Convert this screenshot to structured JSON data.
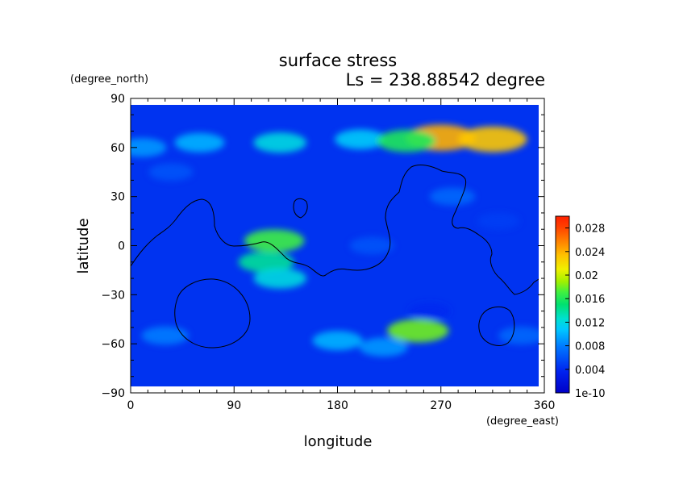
{
  "chart_data": {
    "type": "heatmap",
    "title": "surface stress",
    "subtitle": "Ls = 238.88542 degree",
    "xlabel": "longitude",
    "ylabel": "latitude",
    "x_unit": "(degree_east)",
    "y_unit": "(degree_north)",
    "xlim": [
      0,
      360
    ],
    "ylim": [
      -90,
      90
    ],
    "x_ticks": [
      0,
      90,
      180,
      270,
      360
    ],
    "y_ticks": [
      90,
      60,
      30,
      0,
      -30,
      -60,
      -90
    ],
    "x_tick_labels": [
      "0",
      "90",
      "180",
      "270",
      "360"
    ],
    "y_tick_labels": [
      "90",
      "60",
      "30",
      "0",
      "−30",
      "−60",
      "−90"
    ],
    "colorbar": {
      "min": 0,
      "max": 0.03,
      "tick_values": [
        0,
        0.004,
        0.008,
        0.012,
        0.016,
        0.02,
        0.024,
        0.028
      ],
      "tick_labels": [
        "1e-10",
        "0.004",
        "0.008",
        "0.012",
        "0.016",
        "0.02",
        "0.024",
        "0.028"
      ]
    },
    "fields": [
      {
        "lon": 60,
        "lat": 63,
        "value": 0.01
      },
      {
        "lon": 130,
        "lat": 63,
        "value": 0.012
      },
      {
        "lon": 200,
        "lat": 65,
        "value": 0.011
      },
      {
        "lon": 270,
        "lat": 66,
        "value": 0.024
      },
      {
        "lon": 315,
        "lat": 65,
        "value": 0.023
      },
      {
        "lon": 240,
        "lat": 64,
        "value": 0.016
      },
      {
        "lon": 10,
        "lat": 60,
        "value": 0.009
      },
      {
        "lon": 35,
        "lat": 45,
        "value": 0.006
      },
      {
        "lon": 125,
        "lat": 3,
        "value": 0.017
      },
      {
        "lon": 118,
        "lat": -10,
        "value": 0.014
      },
      {
        "lon": 130,
        "lat": -20,
        "value": 0.012
      },
      {
        "lon": 210,
        "lat": 0,
        "value": 0.006
      },
      {
        "lon": 280,
        "lat": 30,
        "value": 0.007
      },
      {
        "lon": 320,
        "lat": 15,
        "value": 0.005
      },
      {
        "lon": 30,
        "lat": -55,
        "value": 0.008
      },
      {
        "lon": 180,
        "lat": -58,
        "value": 0.01
      },
      {
        "lon": 250,
        "lat": -52,
        "value": 0.018
      },
      {
        "lon": 220,
        "lat": -62,
        "value": 0.009
      },
      {
        "lon": 340,
        "lat": -55,
        "value": 0.007
      },
      {
        "lon": 260,
        "lat": -40,
        "value": 0.004
      }
    ]
  }
}
